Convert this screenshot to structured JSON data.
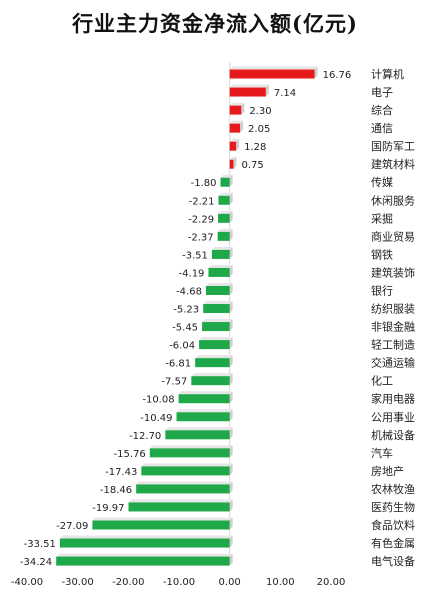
{
  "chart_data": {
    "type": "bar",
    "orientation": "horizontal",
    "title": "行业主力资金净流入额(亿元)",
    "xlim": [
      -40,
      20
    ],
    "xticks": [
      "-40.00",
      "-30.00",
      "-20.00",
      "-10.00",
      "0.00",
      "10.00",
      "20.00"
    ],
    "grid": false,
    "categories": [
      "计算机",
      "电子",
      "综合",
      "通信",
      "国防军工",
      "建筑材料",
      "传媒",
      "休闲服务",
      "采掘",
      "商业贸易",
      "钢铁",
      "建筑装饰",
      "银行",
      "纺织服装",
      "非银金融",
      "轻工制造",
      "交通运输",
      "化工",
      "家用电器",
      "公用事业",
      "机械设备",
      "汽车",
      "房地产",
      "农林牧渔",
      "医药生物",
      "食品饮料",
      "有色金属",
      "电气设备"
    ],
    "values": [
      16.76,
      7.14,
      2.3,
      2.05,
      1.28,
      0.75,
      -1.8,
      -2.21,
      -2.29,
      -2.37,
      -3.51,
      -4.19,
      -4.68,
      -5.23,
      -5.45,
      -6.04,
      -6.81,
      -7.57,
      -10.08,
      -10.49,
      -12.7,
      -15.76,
      -17.43,
      -18.46,
      -19.97,
      -27.09,
      -33.51,
      -34.24
    ],
    "value_labels": [
      "16.76",
      "7.14",
      "2.30",
      "2.05",
      "1.28",
      "0.75",
      "-1.80",
      "-2.21",
      "-2.29",
      "-2.37",
      "-3.51",
      "-4.19",
      "-4.68",
      "-5.23",
      "-5.45",
      "-6.04",
      "-6.81",
      "-7.57",
      "-10.08",
      "-10.49",
      "-12.70",
      "-15.76",
      "-17.43",
      "-18.46",
      "-19.97",
      "-27.09",
      "-33.51",
      "-34.24"
    ],
    "colors": {
      "positive": "#e8191b",
      "negative": "#1fa84a"
    }
  }
}
